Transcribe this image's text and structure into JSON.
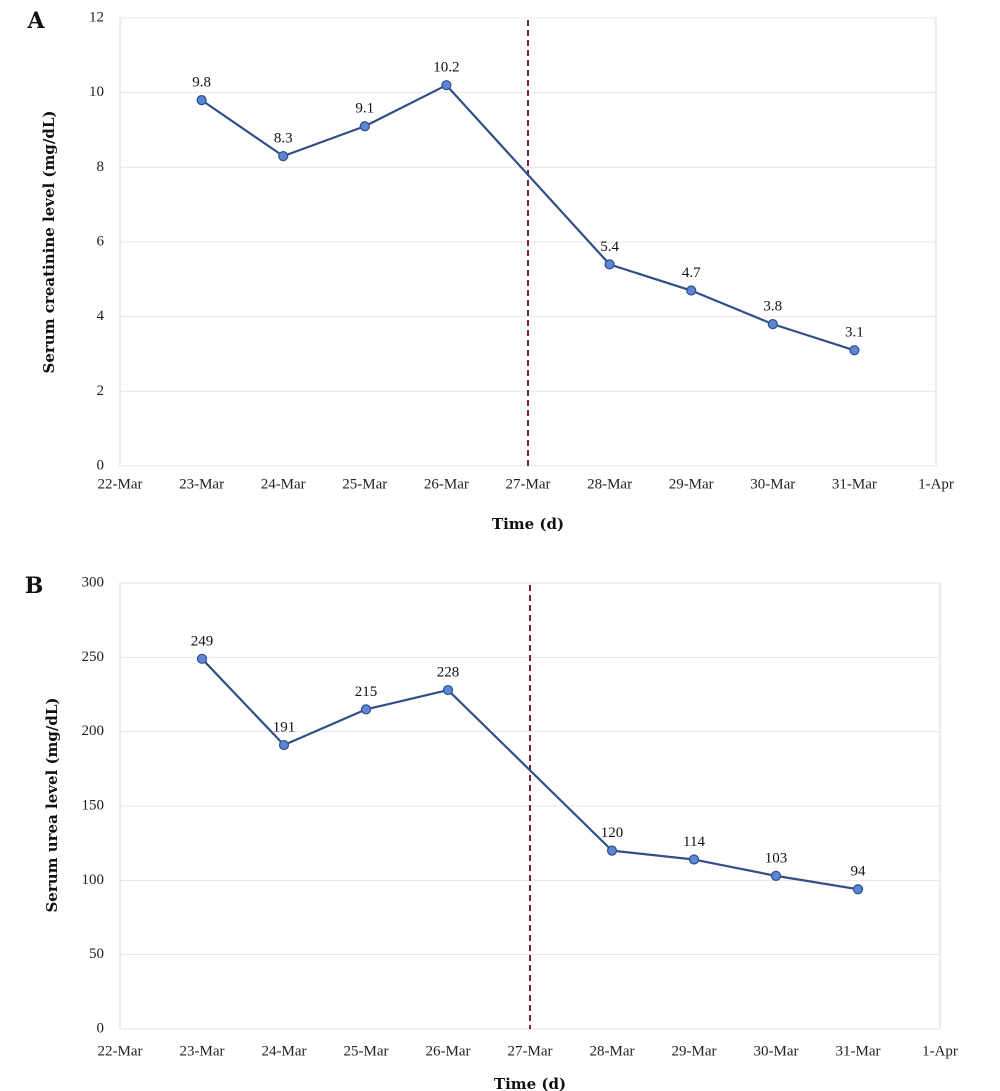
{
  "chart_data": [
    {
      "type": "line",
      "panel_label": "A",
      "x": [
        "23-Mar",
        "24-Mar",
        "25-Mar",
        "26-Mar",
        "28-Mar",
        "29-Mar",
        "30-Mar",
        "31-Mar"
      ],
      "x_ticks": [
        "22-Mar",
        "23-Mar",
        "24-Mar",
        "25-Mar",
        "26-Mar",
        "27-Mar",
        "28-Mar",
        "29-Mar",
        "30-Mar",
        "31-Mar",
        "1-Apr"
      ],
      "series": [
        {
          "values": [
            9.8,
            8.3,
            9.1,
            10.2,
            5.4,
            4.7,
            3.8,
            3.1
          ]
        }
      ],
      "data_labels": [
        "9.8",
        "8.3",
        "9.1",
        "10.2",
        "5.4",
        "4.7",
        "3.8",
        "3.1"
      ],
      "y_ticks": [
        0,
        2,
        4,
        6,
        8,
        10,
        12
      ],
      "ylim": [
        0,
        12
      ],
      "xlabel": "Time (d)",
      "ylabel": "Serum creatinine level (mg/dL)",
      "reference_line_x": "27-Mar",
      "grid": true,
      "series_color": "#2f4f86",
      "marker_color": "#5b86d6",
      "reference_line_color": "#7a1f3d"
    },
    {
      "type": "line",
      "panel_label": "B",
      "x": [
        "23-Mar",
        "24-Mar",
        "25-Mar",
        "26-Mar",
        "28-Mar",
        "29-Mar",
        "30-Mar",
        "31-Mar"
      ],
      "x_ticks": [
        "22-Mar",
        "23-Mar",
        "24-Mar",
        "25-Mar",
        "26-Mar",
        "27-Mar",
        "28-Mar",
        "29-Mar",
        "30-Mar",
        "31-Mar",
        "1-Apr"
      ],
      "series": [
        {
          "values": [
            249,
            191,
            215,
            228,
            120,
            114,
            103,
            94
          ]
        }
      ],
      "data_labels": [
        "249",
        "191",
        "215",
        "228",
        "120",
        "114",
        "103",
        "94"
      ],
      "y_ticks": [
        0,
        50,
        100,
        150,
        200,
        250,
        300
      ],
      "ylim": [
        0,
        300
      ],
      "xlabel": "Time (d)",
      "ylabel": "Serum urea level (mg/dL)",
      "reference_line_x": "27-Mar",
      "grid": true,
      "series_color": "#2f4f86",
      "marker_color": "#5b86d6",
      "reference_line_color": "#7a1f3d"
    }
  ]
}
